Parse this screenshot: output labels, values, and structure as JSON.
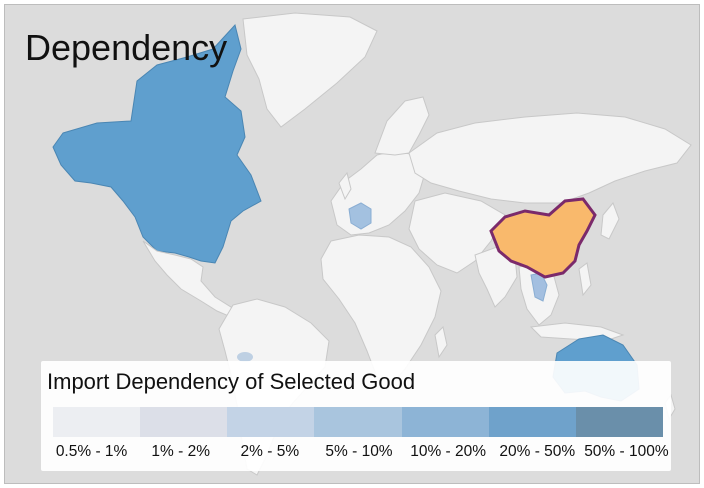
{
  "title": "Dependency",
  "legend": {
    "title": "Import Dependency of Selected Good",
    "bins": [
      {
        "label": "0.5% - 1%",
        "color": "#eceef2"
      },
      {
        "label": "1% - 2%",
        "color": "#dcdfe8"
      },
      {
        "label": "2% - 5%",
        "color": "#c3d3e6"
      },
      {
        "label": "5% - 10%",
        "color": "#a9c5de"
      },
      {
        "label": "10% - 20%",
        "color": "#8db4d6"
      },
      {
        "label": "20% - 50%",
        "color": "#6fa2cb"
      },
      {
        "label": "50% - 100%",
        "color": "#6a8faa"
      }
    ]
  },
  "colors": {
    "ocean": "#dcdcdc",
    "land": "#f4f4f4",
    "border": "#c8c8c8",
    "selected_country": "#f9b96c",
    "selected_outline": "#7b2a6b"
  },
  "regions": [
    {
      "name": "Canada and United States",
      "bin": "20% - 50%"
    },
    {
      "name": "Australia",
      "bin": "20% - 50%"
    },
    {
      "name": "France",
      "bin": "5% - 10%"
    },
    {
      "name": "Thailand",
      "bin": "5% - 10%"
    },
    {
      "name": "China",
      "bin": "selected"
    }
  ]
}
